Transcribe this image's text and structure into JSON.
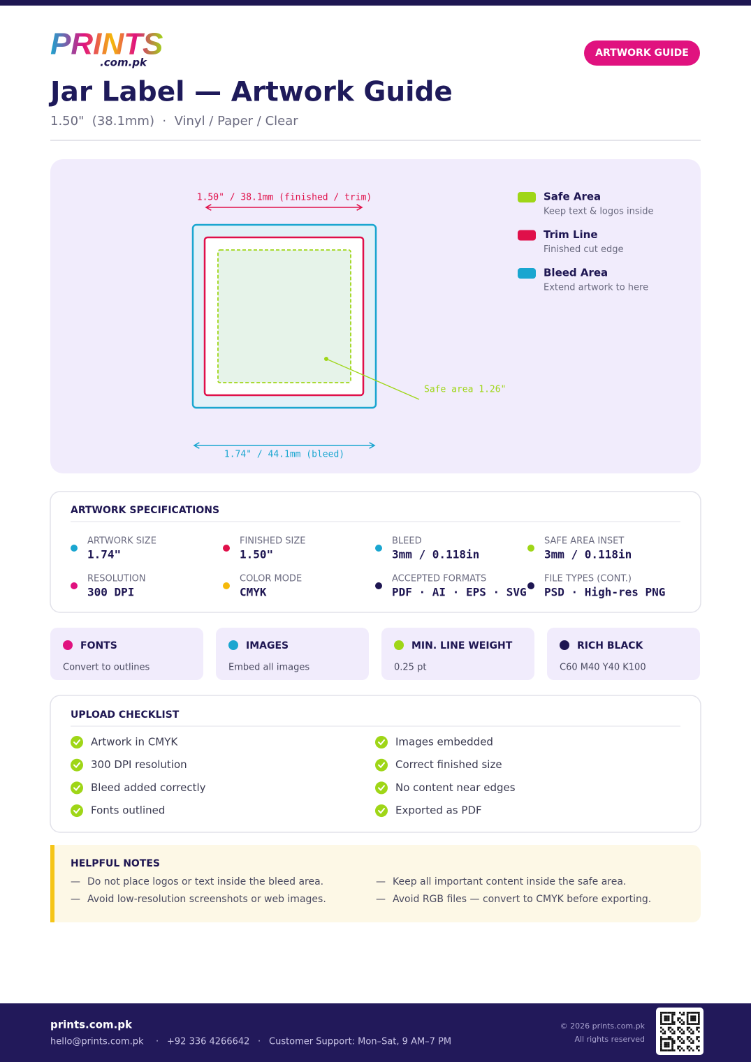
{
  "header": {
    "logo": "PRINTS",
    "logo_sub": ".com.pk",
    "badge": "ARTWORK GUIDE",
    "title": "Jar Label — Artwork Guide",
    "subtitle": "1.50\"  (38.1mm)  ·  Vinyl / Paper / Clear"
  },
  "diagram": {
    "trim_label": "1.50\" / 38.1mm (finished / trim)",
    "bleed_label": "1.74\" / 44.1mm (bleed)",
    "safe_label": "Safe area 1.26\""
  },
  "legend": [
    {
      "title": "Safe Area",
      "desc": "Keep text & logos inside",
      "color": "#9fd617"
    },
    {
      "title": "Trim Line",
      "desc": "Finished cut edge",
      "color": "#e0104a"
    },
    {
      "title": "Bleed Area",
      "desc": "Extend artwork to here",
      "color": "#1aa6d0"
    }
  ],
  "specs": {
    "title": "ARTWORK SPECIFICATIONS",
    "items": [
      {
        "label": "ARTWORK SIZE",
        "value": "1.74\"",
        "color": "#1aa6d0"
      },
      {
        "label": "FINISHED SIZE",
        "value": "1.50\"",
        "color": "#e0104a"
      },
      {
        "label": "BLEED",
        "value": "3mm / 0.118in",
        "color": "#1aa6d0"
      },
      {
        "label": "SAFE AREA INSET",
        "value": "3mm / 0.118in",
        "color": "#9fd617"
      },
      {
        "label": "RESOLUTION",
        "value": "300 DPI",
        "color": "#e0127f"
      },
      {
        "label": "COLOR MODE",
        "value": "CMYK",
        "color": "#f5b90a"
      },
      {
        "label": "ACCEPTED FORMATS",
        "value": "PDF · AI · EPS · SVG",
        "color": "#1e1652"
      },
      {
        "label": "FILE TYPES (CONT.)",
        "value": "PSD · High-res PNG",
        "color": "#1e1652"
      }
    ]
  },
  "cards": [
    {
      "title": "FONTS",
      "desc": "Convert to outlines",
      "color": "#e0127f"
    },
    {
      "title": "IMAGES",
      "desc": "Embed all images",
      "color": "#1aa6d0"
    },
    {
      "title": "MIN. LINE WEIGHT",
      "desc": "0.25 pt",
      "color": "#9fd617"
    },
    {
      "title": "RICH BLACK",
      "desc": "C60 M40 Y40 K100",
      "color": "#1e1652"
    }
  ],
  "checklist": {
    "title": "UPLOAD CHECKLIST",
    "items": [
      "Artwork in CMYK",
      "300 DPI resolution",
      "Bleed added correctly",
      "Fonts outlined",
      "Images embedded",
      "Correct finished size",
      "No content near edges",
      "Exported as PDF"
    ]
  },
  "notes": {
    "title": "HELPFUL NOTES",
    "items": [
      "Do not place logos or text inside the bleed area.",
      "Avoid low-resolution screenshots or web images.",
      "Keep all important content inside the safe area.",
      "Avoid RGB files — convert to CMYK before exporting."
    ]
  },
  "footer": {
    "brand": "prints.com.pk",
    "email": "hello@prints.com.pk",
    "phone": "+92 336 4266642",
    "support": "Customer Support: Mon–Sat, 9 AM–7 PM",
    "copyright": "© 2026 prints.com.pk",
    "rights": "All rights reserved"
  }
}
